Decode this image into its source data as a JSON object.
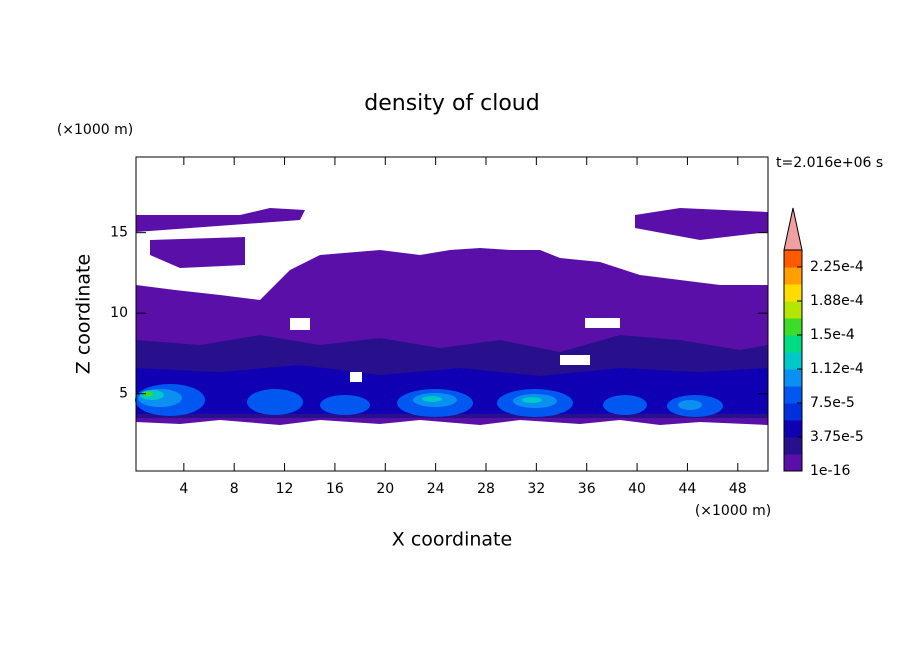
{
  "chart_data": {
    "type": "contour",
    "title": "density of cloud",
    "x_label": "X coordinate",
    "y_label": "Z coordinate",
    "x_unit": "(×1000 m)",
    "y_unit": "(×1000 m)",
    "time_label": "t=2.016e+06 s",
    "xlim": [
      0.2,
      50.4
    ],
    "ylim": [
      0.2,
      19.7
    ],
    "xticks": [
      4,
      8,
      12,
      16,
      20,
      24,
      28,
      32,
      36,
      40,
      44,
      48
    ],
    "yticks": [
      5,
      10,
      15
    ],
    "colorbar": {
      "clim": [
        1e-16,
        0.00024375
      ],
      "ticks": [
        1e-16,
        {
          "value": 3.75e-05,
          "label": "3.75e-5"
        },
        {
          "value": 7.5e-05,
          "label": "7.5e-5"
        },
        {
          "value": 0.0001125,
          "label": "1.12e-4"
        },
        {
          "value": 0.00015,
          "label": "1.5e-4"
        },
        {
          "value": 0.0001875,
          "label": "1.88e-4"
        },
        {
          "value": 0.000225,
          "label": "2.25e-4"
        }
      ],
      "colors": [
        "#5a10a8",
        "#28108c",
        "#1000b4",
        "#0030dc",
        "#0058f0",
        "#0a90f0",
        "#00c8c8",
        "#00dc82",
        "#3cdc28",
        "#b4e600",
        "#ffdc00",
        "#ffa000",
        "#ff5a00",
        "#e61e1e"
      ],
      "extend_color": "#f0a0a0"
    }
  }
}
